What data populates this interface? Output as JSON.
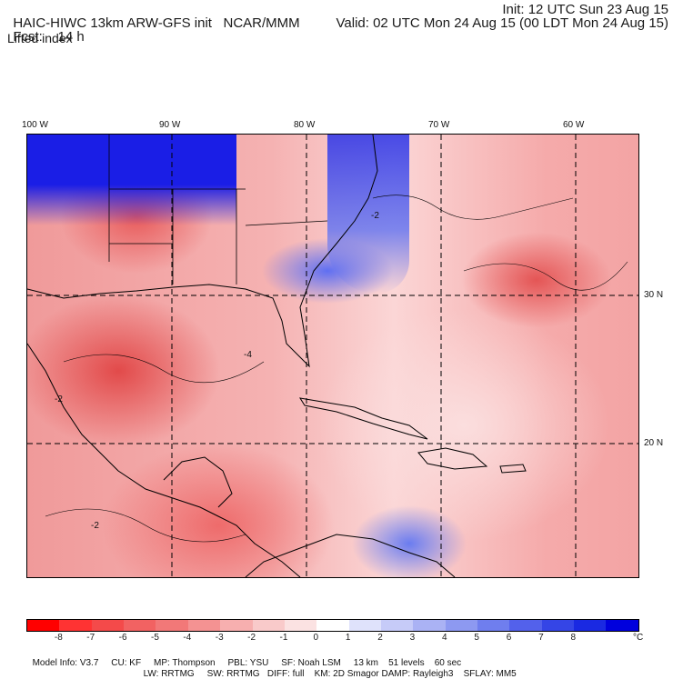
{
  "header": {
    "model_title": "HAIC-HIWC 13km ARW-GFS init",
    "org": "NCAR/MMM",
    "init_label": "Init: 12 UTC Sun 23 Aug 15",
    "fcst_label": "Fcst:",
    "fcst_value": "14 h",
    "valid_label": "Valid: 02 UTC Mon 24 Aug 15 (00 LDT Mon 24 Aug 15)",
    "field_name": "Lifted index"
  },
  "map": {
    "lon_labels": [
      "100 W",
      "90 W",
      "80 W",
      "70 W",
      "60 W"
    ],
    "lat_labels": [
      "30 N",
      "20 N"
    ],
    "contour_labels": [
      "-2",
      "-4",
      "-2",
      "-2"
    ]
  },
  "colorbar": {
    "colors": [
      "#ff0000",
      "#ff3333",
      "#f44a4a",
      "#f26262",
      "#f27878",
      "#f49292",
      "#f7afaf",
      "#f9caca",
      "#fbe2e2",
      "#ffffff",
      "#dfe2fb",
      "#c6cbf8",
      "#aab2f4",
      "#8d99f1",
      "#6f7eee",
      "#5361eb",
      "#3545e6",
      "#1a29e2",
      "#0000dd"
    ],
    "labels": [
      "-8",
      "-7",
      "-6",
      "-5",
      "-4",
      "-3",
      "-2",
      "-1",
      "0",
      "1",
      "2",
      "3",
      "4",
      "5",
      "6",
      "7",
      "8"
    ],
    "unit": "°C"
  },
  "footer": {
    "line1": [
      "Model Info: V3.7",
      "CU: KF",
      "MP: Thompson",
      "PBL: YSU",
      "SF: Noah LSM",
      "13 km",
      "51 levels",
      "60 sec"
    ],
    "line2": [
      "LW: RRTMG",
      "SW: RRTMG",
      "DIFF: full",
      "KM: 2D Smagor",
      "DAMP: Rayleigh3",
      "SFLAY: MM5"
    ]
  }
}
